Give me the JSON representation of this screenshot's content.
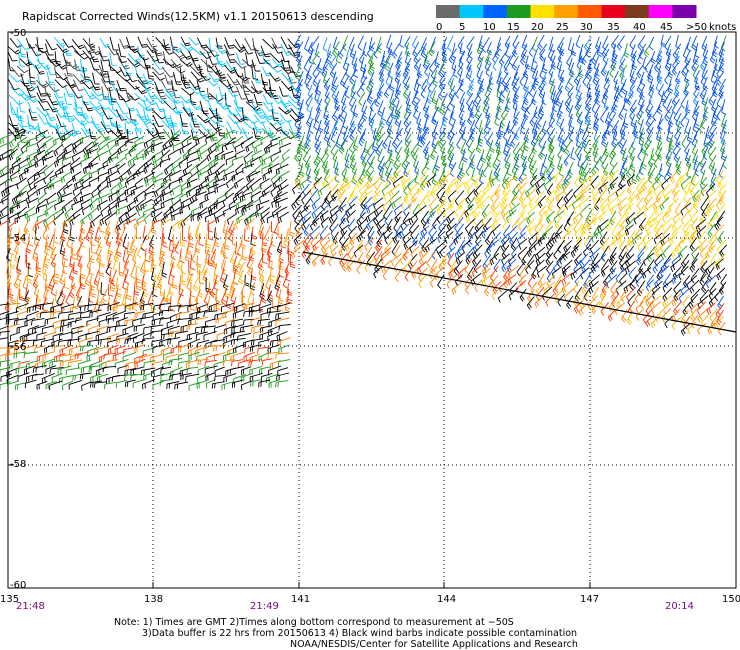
{
  "title": "Rapidscat Corrected Winds(12.5KM) v1.1 20150613 descending",
  "legend": {
    "labels": [
      "0",
      "5",
      "10",
      "15",
      "20",
      "25",
      "30",
      "35",
      "40",
      "45",
      ">50",
      "knots"
    ],
    "colors": [
      "#6b6b6b",
      "#00c8ff",
      "#0064ff",
      "#1e9b1e",
      "#ffe000",
      "#ffa000",
      "#ff5a00",
      "#e8001e",
      "#7a3a1e",
      "#ff00ff",
      "#7a00aa"
    ]
  },
  "axes": {
    "lat_labels": [
      "-50",
      "-52",
      "-54",
      "-56",
      "-58",
      "-60"
    ],
    "lon_labels": [
      "135",
      "138",
      "141",
      "144",
      "147",
      "150"
    ],
    "time_labels": [
      "21:48",
      "21:49",
      "20:14"
    ]
  },
  "notes": [
    "Note: 1) Times are GMT 2)Times along bottom correspond to measurement at −50S",
    "3)Data buffer is 22 hrs from 20150613 4) Black wind barbs indicate possible contamination",
    "NOAA/NESDIS/Center for Satellite Applications and Research"
  ]
}
